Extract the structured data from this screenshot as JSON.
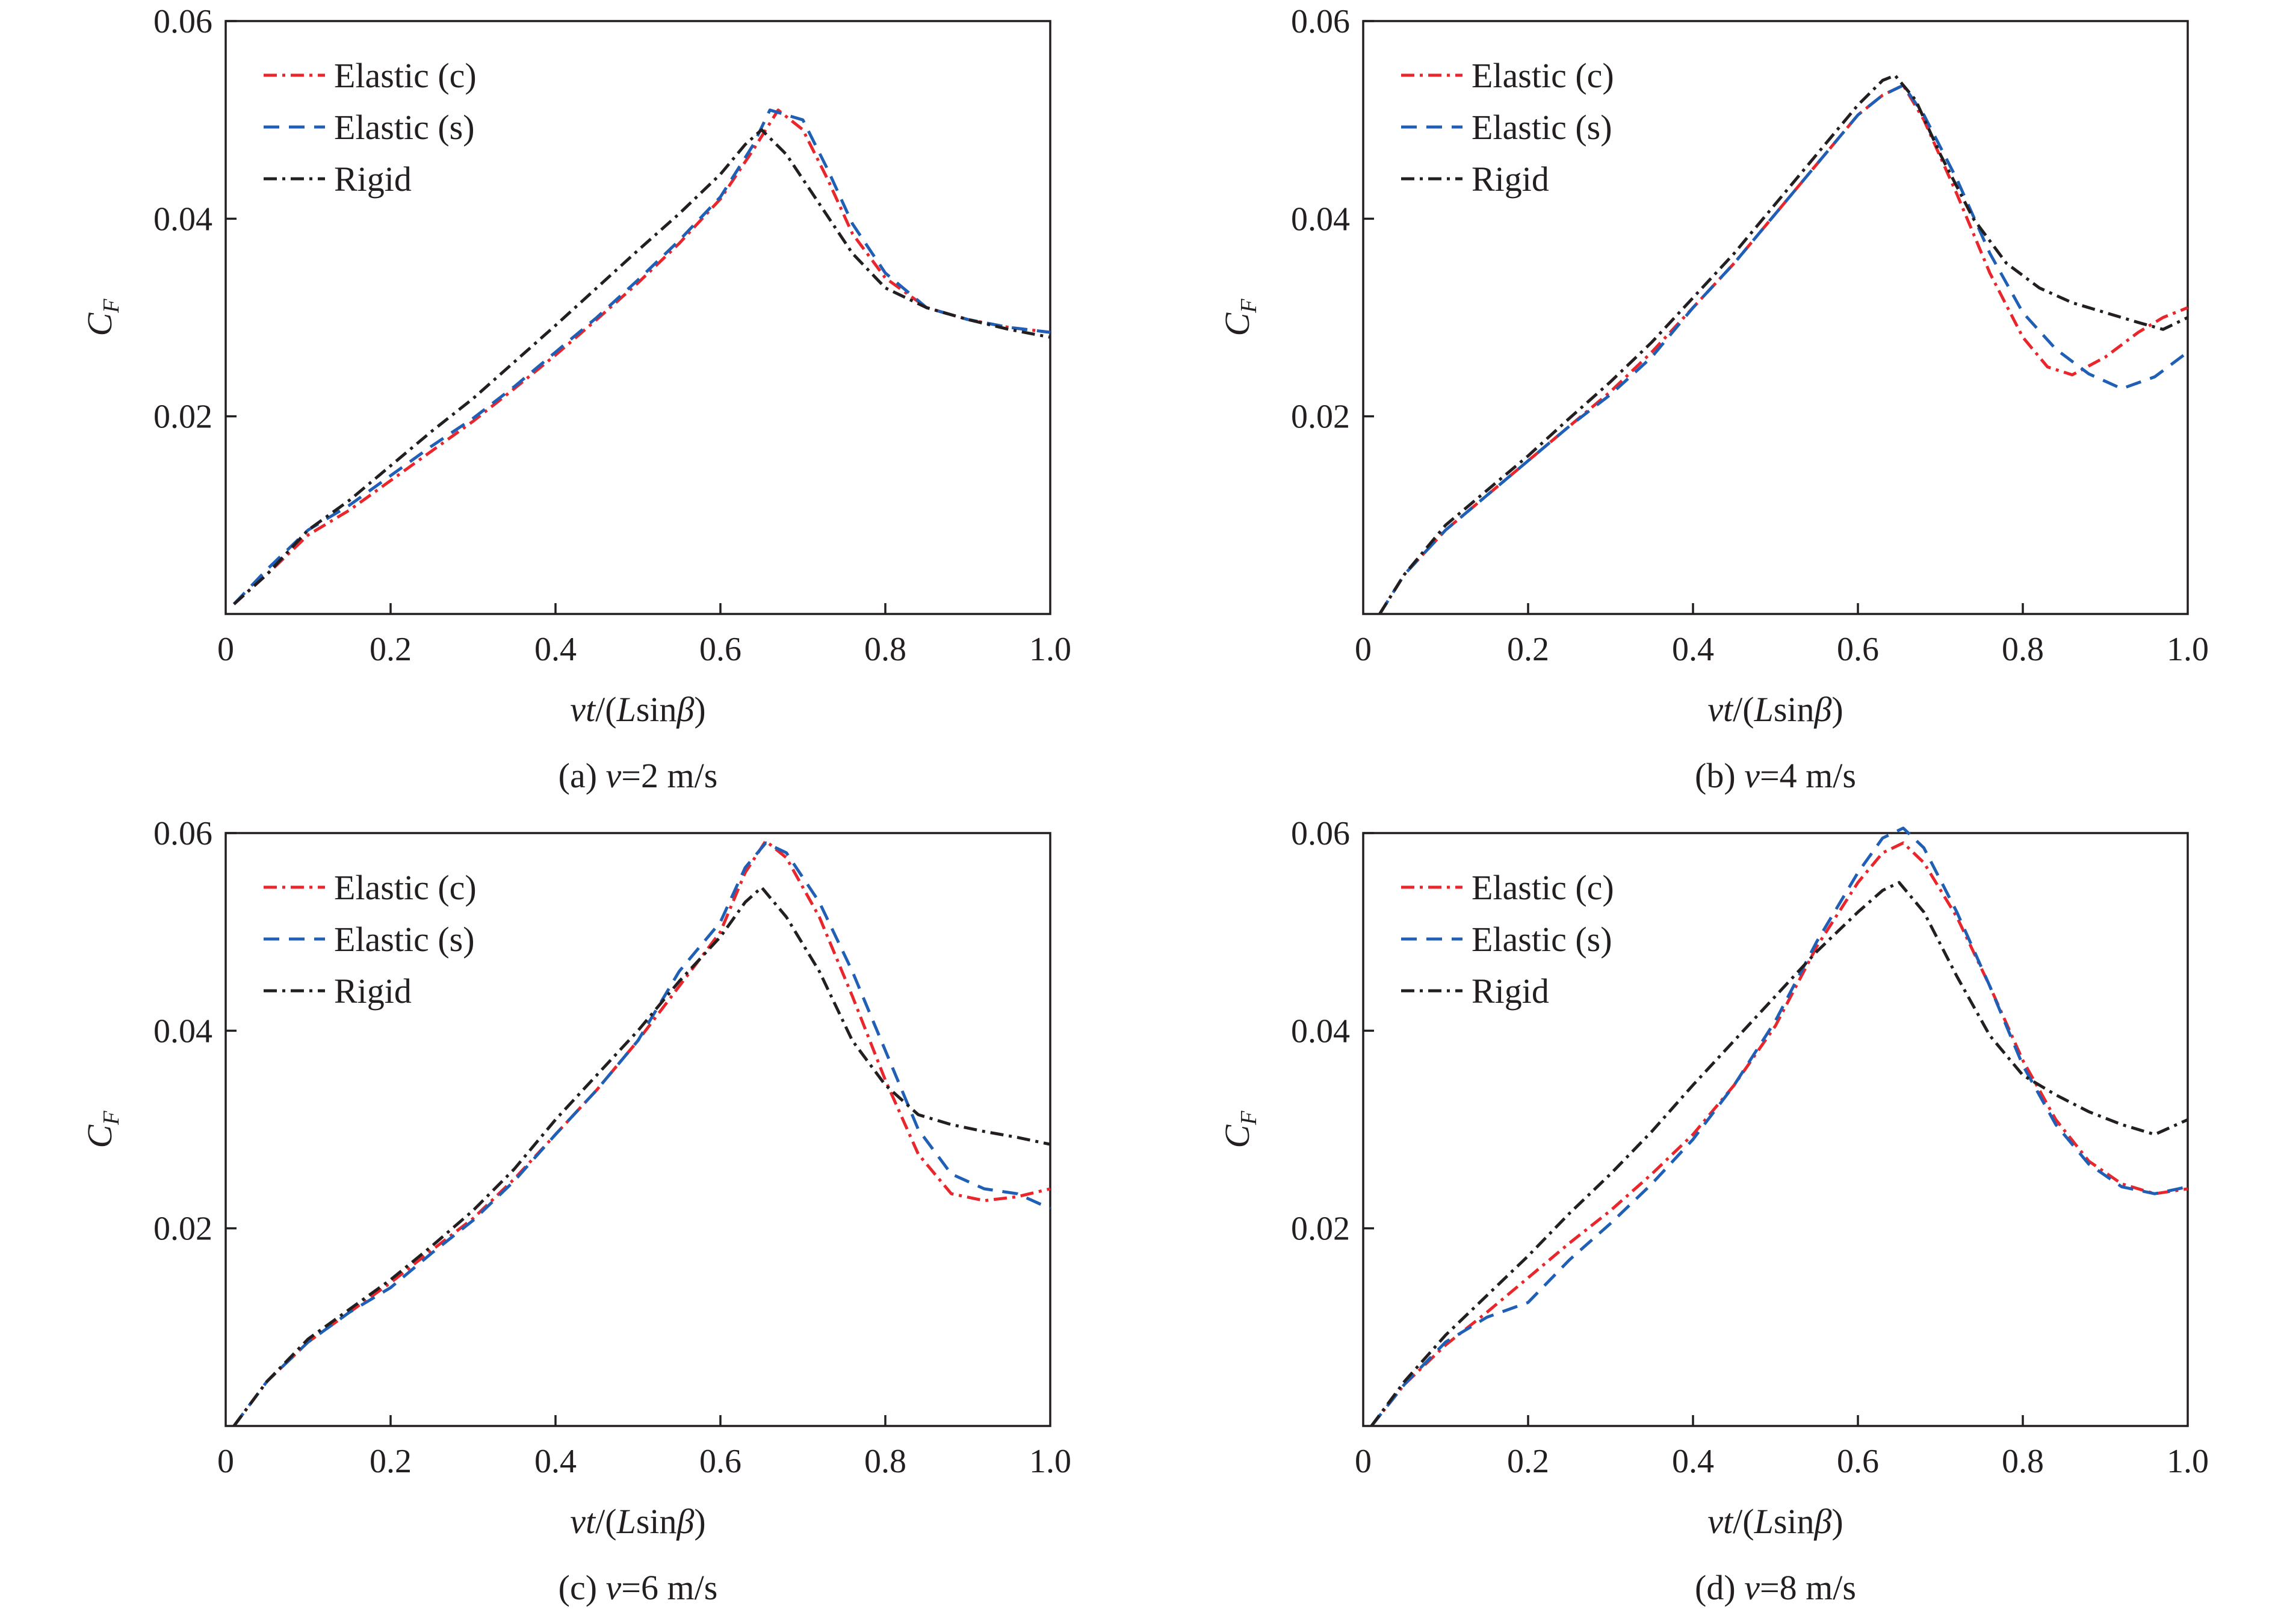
{
  "colors": {
    "elastic_c": "#e8262c",
    "elastic_s": "#1f5fb5",
    "rigid": "#231f20",
    "axis": "#231f20"
  },
  "legend_labels": [
    "Elastic (c)",
    "Elastic (s)",
    "Rigid"
  ],
  "chart_data": [
    {
      "type": "line",
      "caption": "(a) v=2 m/s",
      "xlabel": "vt/(Lsinβ)",
      "ylabel": "CF",
      "xlim": [
        0,
        1.0
      ],
      "ylim": [
        0,
        0.06
      ],
      "xticks": [
        0,
        0.2,
        0.4,
        0.6,
        0.8,
        1.0
      ],
      "xtick_labels": [
        "0",
        "0.2",
        "0.4",
        "0.6",
        "0.8",
        "1.0"
      ],
      "yticks": [
        0.02,
        0.04,
        0.06
      ],
      "ytick_labels": [
        "0.02",
        "0.04",
        "0.06"
      ],
      "legend_position": "top-left",
      "series": [
        {
          "name": "Elastic (c)",
          "x": [
            0.01,
            0.05,
            0.1,
            0.15,
            0.2,
            0.25,
            0.3,
            0.35,
            0.4,
            0.45,
            0.5,
            0.55,
            0.6,
            0.64,
            0.67,
            0.7,
            0.73,
            0.76,
            0.8,
            0.85,
            0.9,
            0.95,
            1.0
          ],
          "y": [
            0.001,
            0.004,
            0.008,
            0.0105,
            0.0135,
            0.0165,
            0.0195,
            0.0228,
            0.0262,
            0.0298,
            0.0335,
            0.0375,
            0.042,
            0.047,
            0.051,
            0.049,
            0.044,
            0.0385,
            0.034,
            0.031,
            0.0298,
            0.029,
            0.0285
          ]
        },
        {
          "name": "Elastic (s)",
          "x": [
            0.01,
            0.05,
            0.1,
            0.15,
            0.2,
            0.25,
            0.3,
            0.35,
            0.4,
            0.45,
            0.5,
            0.55,
            0.6,
            0.64,
            0.66,
            0.7,
            0.73,
            0.76,
            0.8,
            0.85,
            0.9,
            0.95,
            1.0
          ],
          "y": [
            0.001,
            0.0045,
            0.0085,
            0.011,
            0.014,
            0.017,
            0.0198,
            0.023,
            0.0265,
            0.03,
            0.0338,
            0.0378,
            0.0422,
            0.0475,
            0.051,
            0.05,
            0.045,
            0.0395,
            0.0345,
            0.031,
            0.0298,
            0.029,
            0.0285
          ]
        },
        {
          "name": "Rigid",
          "x": [
            0.01,
            0.05,
            0.1,
            0.15,
            0.2,
            0.25,
            0.3,
            0.35,
            0.4,
            0.45,
            0.5,
            0.55,
            0.6,
            0.63,
            0.65,
            0.68,
            0.72,
            0.76,
            0.8,
            0.85,
            0.9,
            0.95,
            1.0
          ],
          "y": [
            0.001,
            0.004,
            0.0085,
            0.0115,
            0.015,
            0.0185,
            0.0218,
            0.0255,
            0.0292,
            0.033,
            0.0368,
            0.0405,
            0.0445,
            0.0475,
            0.049,
            0.0465,
            0.0415,
            0.0365,
            0.033,
            0.031,
            0.0298,
            0.0288,
            0.028
          ]
        }
      ]
    },
    {
      "type": "line",
      "caption": "(b) v=4 m/s",
      "xlabel": "vt/(Lsinβ)",
      "ylabel": "CF",
      "xlim": [
        0,
        1.0
      ],
      "ylim": [
        0,
        0.06
      ],
      "xticks": [
        0,
        0.2,
        0.4,
        0.6,
        0.8,
        1.0
      ],
      "xtick_labels": [
        "0",
        "0.2",
        "0.4",
        "0.6",
        "0.8",
        "1.0"
      ],
      "yticks": [
        0.02,
        0.04,
        0.06
      ],
      "ytick_labels": [
        "0.02",
        "0.04",
        "0.06"
      ],
      "legend_position": "top-left",
      "series": [
        {
          "name": "Elastic (c)",
          "x": [
            0.02,
            0.05,
            0.1,
            0.15,
            0.2,
            0.25,
            0.3,
            0.35,
            0.4,
            0.45,
            0.5,
            0.55,
            0.6,
            0.63,
            0.655,
            0.68,
            0.72,
            0.76,
            0.8,
            0.83,
            0.86,
            0.9,
            0.94,
            0.97,
            1.0
          ],
          "y": [
            0.0,
            0.004,
            0.0085,
            0.012,
            0.0155,
            0.019,
            0.0225,
            0.0265,
            0.031,
            0.0355,
            0.0405,
            0.0455,
            0.0505,
            0.0525,
            0.0535,
            0.05,
            0.0425,
            0.0345,
            0.028,
            0.025,
            0.0242,
            0.026,
            0.0285,
            0.03,
            0.031
          ]
        },
        {
          "name": "Elastic (s)",
          "x": [
            0.02,
            0.05,
            0.1,
            0.15,
            0.2,
            0.25,
            0.3,
            0.35,
            0.4,
            0.45,
            0.5,
            0.55,
            0.6,
            0.63,
            0.655,
            0.68,
            0.72,
            0.76,
            0.8,
            0.84,
            0.88,
            0.92,
            0.96,
            1.0
          ],
          "y": [
            0.0,
            0.004,
            0.0085,
            0.012,
            0.0155,
            0.019,
            0.0222,
            0.026,
            0.031,
            0.0355,
            0.0405,
            0.0455,
            0.0505,
            0.0525,
            0.0535,
            0.0505,
            0.044,
            0.0365,
            0.0305,
            0.0268,
            0.0243,
            0.0228,
            0.024,
            0.0265
          ]
        },
        {
          "name": "Rigid",
          "x": [
            0.02,
            0.05,
            0.1,
            0.15,
            0.2,
            0.25,
            0.3,
            0.35,
            0.4,
            0.45,
            0.5,
            0.55,
            0.6,
            0.63,
            0.645,
            0.67,
            0.7,
            0.74,
            0.78,
            0.82,
            0.86,
            0.9,
            0.94,
            0.97,
            1.0
          ],
          "y": [
            0.0,
            0.004,
            0.009,
            0.0125,
            0.016,
            0.0198,
            0.0235,
            0.0275,
            0.032,
            0.0365,
            0.0415,
            0.0465,
            0.0515,
            0.054,
            0.0545,
            0.052,
            0.0465,
            0.04,
            0.0355,
            0.033,
            0.0315,
            0.0305,
            0.0295,
            0.0288,
            0.03
          ]
        }
      ]
    },
    {
      "type": "line",
      "caption": "(c) v=6 m/s",
      "xlabel": "vt/(Lsinβ)",
      "ylabel": "CF",
      "xlim": [
        0,
        1.0
      ],
      "ylim": [
        0,
        0.06
      ],
      "xticks": [
        0,
        0.2,
        0.4,
        0.6,
        0.8,
        1.0
      ],
      "xtick_labels": [
        "0",
        "0.2",
        "0.4",
        "0.6",
        "0.8",
        "1.0"
      ],
      "yticks": [
        0.02,
        0.04,
        0.06
      ],
      "ytick_labels": [
        "0.02",
        "0.04",
        "0.06"
      ],
      "legend_position": "top-left",
      "series": [
        {
          "name": "Elastic (c)",
          "x": [
            0.01,
            0.05,
            0.1,
            0.15,
            0.2,
            0.25,
            0.3,
            0.35,
            0.4,
            0.45,
            0.5,
            0.55,
            0.6,
            0.63,
            0.655,
            0.68,
            0.72,
            0.76,
            0.8,
            0.84,
            0.88,
            0.92,
            0.96,
            1.0
          ],
          "y": [
            0.0,
            0.0045,
            0.0085,
            0.0115,
            0.0145,
            0.0178,
            0.021,
            0.025,
            0.0295,
            0.034,
            0.039,
            0.0445,
            0.05,
            0.056,
            0.0592,
            0.0575,
            0.0515,
            0.0435,
            0.035,
            0.0275,
            0.0235,
            0.0228,
            0.0232,
            0.024
          ]
        },
        {
          "name": "Elastic (s)",
          "x": [
            0.01,
            0.05,
            0.1,
            0.15,
            0.2,
            0.25,
            0.3,
            0.35,
            0.4,
            0.45,
            0.5,
            0.55,
            0.6,
            0.63,
            0.655,
            0.68,
            0.72,
            0.76,
            0.8,
            0.84,
            0.88,
            0.92,
            0.96,
            1.0
          ],
          "y": [
            0.0,
            0.0045,
            0.0085,
            0.0115,
            0.014,
            0.0175,
            0.0208,
            0.0248,
            0.0295,
            0.034,
            0.039,
            0.046,
            0.051,
            0.0565,
            0.059,
            0.058,
            0.053,
            0.046,
            0.038,
            0.03,
            0.0255,
            0.024,
            0.0235,
            0.022
          ]
        },
        {
          "name": "Rigid",
          "x": [
            0.01,
            0.05,
            0.1,
            0.15,
            0.2,
            0.25,
            0.3,
            0.35,
            0.4,
            0.45,
            0.5,
            0.55,
            0.6,
            0.63,
            0.65,
            0.68,
            0.72,
            0.76,
            0.8,
            0.84,
            0.88,
            0.92,
            0.96,
            1.0
          ],
          "y": [
            0.0,
            0.0045,
            0.0088,
            0.0118,
            0.0148,
            0.0182,
            0.0218,
            0.026,
            0.031,
            0.0355,
            0.04,
            0.045,
            0.0495,
            0.053,
            0.0545,
            0.0515,
            0.046,
            0.039,
            0.0345,
            0.0315,
            0.0305,
            0.0298,
            0.0292,
            0.0285
          ]
        }
      ]
    },
    {
      "type": "line",
      "caption": "(d) v=8 m/s",
      "xlabel": "vt/(Lsinβ)",
      "ylabel": "CF",
      "xlim": [
        0,
        1.0
      ],
      "ylim": [
        0,
        0.06
      ],
      "xticks": [
        0,
        0.2,
        0.4,
        0.6,
        0.8,
        1.0
      ],
      "xtick_labels": [
        "0",
        "0.2",
        "0.4",
        "0.6",
        "0.8",
        "1.0"
      ],
      "yticks": [
        0.02,
        0.04,
        0.06
      ],
      "ytick_labels": [
        "0.02",
        "0.04",
        "0.06"
      ],
      "legend_position": "top-left",
      "series": [
        {
          "name": "Elastic (c)",
          "x": [
            0.01,
            0.05,
            0.1,
            0.15,
            0.2,
            0.25,
            0.3,
            0.35,
            0.4,
            0.45,
            0.5,
            0.55,
            0.6,
            0.63,
            0.655,
            0.68,
            0.72,
            0.76,
            0.8,
            0.84,
            0.88,
            0.92,
            0.96,
            1.0
          ],
          "y": [
            0.0,
            0.0042,
            0.0082,
            0.0115,
            0.015,
            0.0185,
            0.0218,
            0.0255,
            0.0295,
            0.0345,
            0.0405,
            0.0485,
            0.055,
            0.058,
            0.059,
            0.057,
            0.0515,
            0.0445,
            0.037,
            0.031,
            0.0268,
            0.0245,
            0.0235,
            0.024
          ]
        },
        {
          "name": "Elastic (s)",
          "x": [
            0.01,
            0.05,
            0.1,
            0.15,
            0.2,
            0.25,
            0.3,
            0.35,
            0.4,
            0.45,
            0.5,
            0.55,
            0.6,
            0.63,
            0.655,
            0.68,
            0.72,
            0.76,
            0.8,
            0.84,
            0.88,
            0.92,
            0.96,
            1.0
          ],
          "y": [
            0.0,
            0.0042,
            0.0085,
            0.011,
            0.0125,
            0.0168,
            0.0205,
            0.0245,
            0.029,
            0.0345,
            0.041,
            0.049,
            0.056,
            0.0595,
            0.0605,
            0.0585,
            0.052,
            0.0445,
            0.0365,
            0.0305,
            0.0265,
            0.0242,
            0.0235,
            0.0242
          ]
        },
        {
          "name": "Rigid",
          "x": [
            0.01,
            0.05,
            0.1,
            0.15,
            0.2,
            0.25,
            0.3,
            0.35,
            0.4,
            0.45,
            0.5,
            0.55,
            0.6,
            0.63,
            0.65,
            0.68,
            0.72,
            0.76,
            0.8,
            0.84,
            0.88,
            0.92,
            0.96,
            1.0
          ],
          "y": [
            0.0,
            0.0045,
            0.0092,
            0.0132,
            0.0172,
            0.0215,
            0.0255,
            0.0298,
            0.0345,
            0.039,
            0.0435,
            0.048,
            0.052,
            0.0542,
            0.055,
            0.052,
            0.0455,
            0.0395,
            0.0355,
            0.0335,
            0.0318,
            0.0305,
            0.0295,
            0.031
          ]
        }
      ]
    }
  ]
}
